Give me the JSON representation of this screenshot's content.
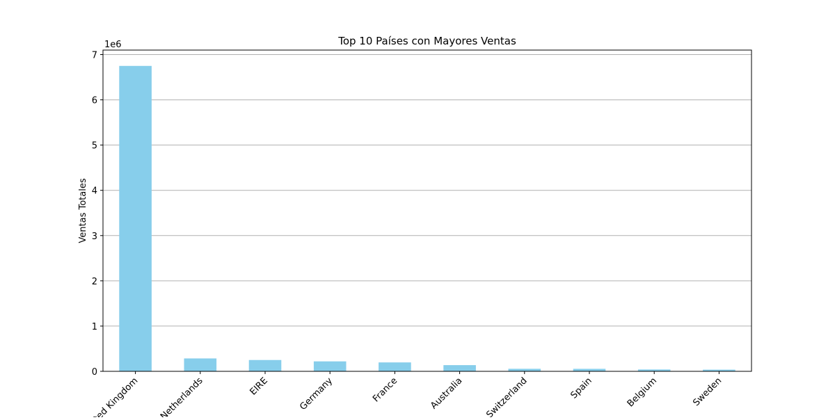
{
  "chart_data": {
    "type": "bar",
    "title": "Top 10 Países con Mayores Ventas",
    "xlabel": "",
    "ylabel": "Ventas Totales",
    "y_scale_label": "1e6",
    "y_scale_factor": 1000000,
    "categories": [
      "United Kingdom",
      "Netherlands",
      "EIRE",
      "Germany",
      "France",
      "Australia",
      "Switzerland",
      "Spain",
      "Belgium",
      "Sweden"
    ],
    "values": [
      6750000,
      285000,
      250000,
      220000,
      197000,
      137000,
      56000,
      55000,
      41000,
      37000
    ],
    "ylim": [
      0,
      7100000
    ],
    "yticks": [
      0,
      1,
      2,
      3,
      4,
      5,
      6,
      7
    ],
    "grid": "y",
    "bar_color": "#87CEEB",
    "grid_color": "#b0b0b0"
  }
}
